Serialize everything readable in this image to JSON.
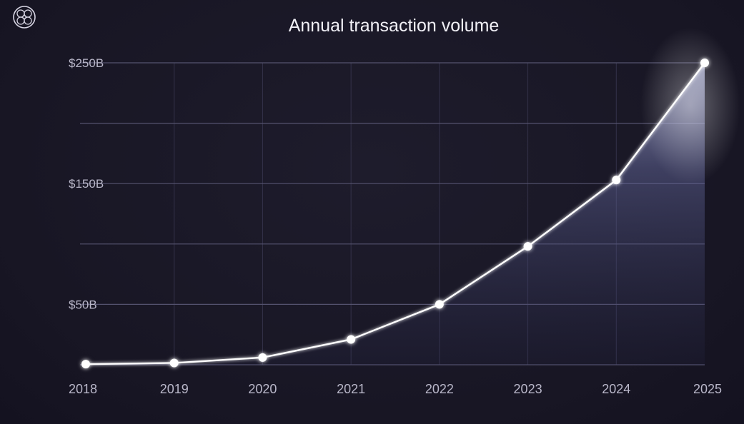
{
  "logo": {
    "icon": "knot-emblem-icon"
  },
  "chart_data": {
    "type": "area",
    "title": "Annual transaction volume",
    "xlabel": "",
    "ylabel": "",
    "x": [
      "2018",
      "2019",
      "2020",
      "2021",
      "2022",
      "2023",
      "2024",
      "2025"
    ],
    "series": [
      {
        "values": [
          0.5,
          1.5,
          6,
          21,
          50,
          98,
          153,
          250
        ]
      }
    ],
    "ylim": [
      0,
      250
    ],
    "y_ticks": [
      0,
      50,
      100,
      150,
      200,
      250
    ],
    "y_tick_labels": [
      "",
      "$50B",
      "",
      "$150B",
      "",
      "$250B"
    ],
    "grid": true,
    "legend": "none",
    "colors": {
      "background": "#1a1826",
      "line": "#ffffff",
      "fill": "#5a5f9c",
      "grid": "#55536f",
      "text": "#b9b7c9"
    }
  }
}
